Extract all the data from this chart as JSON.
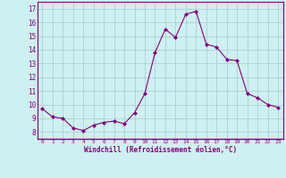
{
  "x": [
    0,
    1,
    2,
    3,
    4,
    5,
    6,
    7,
    8,
    9,
    10,
    11,
    12,
    13,
    14,
    15,
    16,
    17,
    18,
    19,
    20,
    21,
    22,
    23
  ],
  "y": [
    9.7,
    9.1,
    9.0,
    8.3,
    8.1,
    8.5,
    8.7,
    8.8,
    8.6,
    9.4,
    10.8,
    13.8,
    15.5,
    14.9,
    16.6,
    16.8,
    14.4,
    14.2,
    13.3,
    13.2,
    10.8,
    10.5,
    10.0,
    9.8
  ],
  "xlim": [
    -0.5,
    23.5
  ],
  "ylim": [
    7.5,
    17.5
  ],
  "yticks": [
    8,
    9,
    10,
    11,
    12,
    13,
    14,
    15,
    16,
    17
  ],
  "xticks": [
    0,
    1,
    2,
    3,
    4,
    5,
    6,
    7,
    8,
    9,
    10,
    11,
    12,
    13,
    14,
    15,
    16,
    17,
    18,
    19,
    20,
    21,
    22,
    23
  ],
  "xlabel": "Windchill (Refroidissement éolien,°C)",
  "line_color": "#800080",
  "marker": "D",
  "marker_size": 2.0,
  "background_color": "#cff0f0",
  "grid_color": "#a8c8c8",
  "tick_color": "#800080",
  "label_color": "#800080",
  "font_family": "monospace",
  "spine_color": "#800080"
}
